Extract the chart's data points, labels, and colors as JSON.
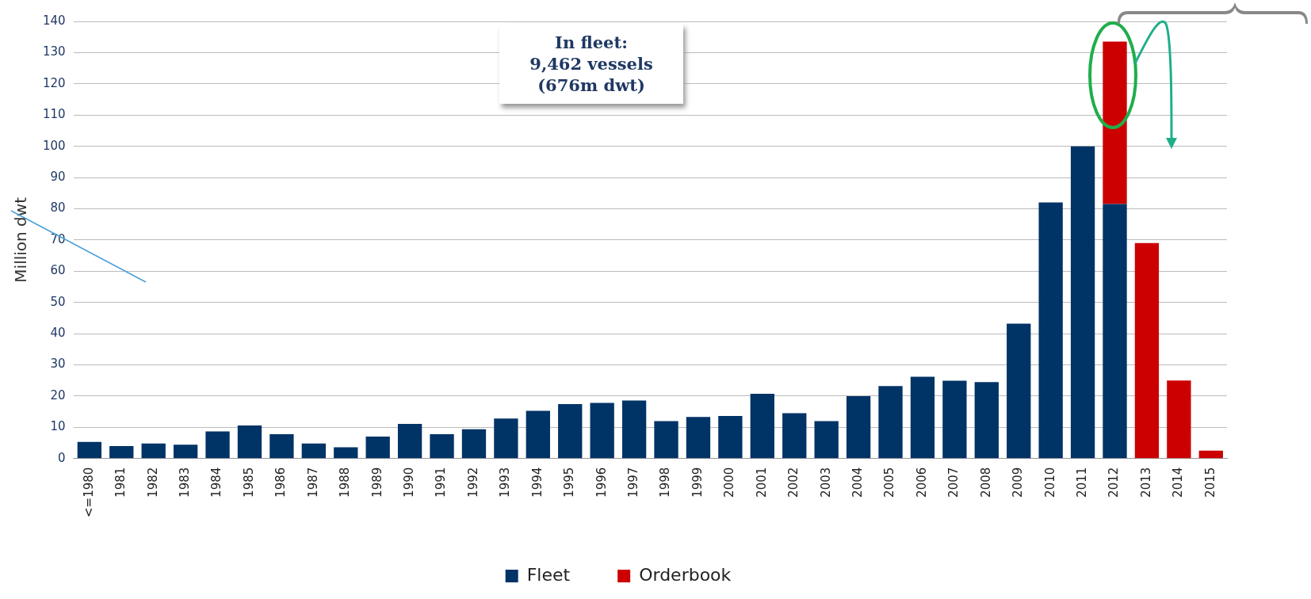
{
  "chart_data": {
    "type": "bar",
    "ylabel": "Million dwt",
    "categories": [
      "<=1980",
      "1981",
      "1982",
      "1983",
      "1984",
      "1985",
      "1986",
      "1987",
      "1988",
      "1989",
      "1990",
      "1991",
      "1992",
      "1993",
      "1994",
      "1995",
      "1996",
      "1997",
      "1998",
      "1999",
      "2000",
      "2001",
      "2002",
      "2003",
      "2004",
      "2005",
      "2006",
      "2007",
      "2008",
      "2009",
      "2010",
      "2011",
      "2012",
      "2013",
      "2014",
      "2015"
    ],
    "series": [
      {
        "name": "Fleet",
        "color": "#003366",
        "values": [
          5.3,
          4,
          4.8,
          4.4,
          8.7,
          10.6,
          7.8,
          4.8,
          3.6,
          7,
          11.1,
          7.8,
          9.4,
          12.8,
          15.3,
          17.4,
          17.8,
          18.6,
          12,
          13.3,
          13.6,
          20.7,
          14.5,
          12,
          20,
          23.2,
          26.2,
          24.9,
          24.5,
          43.2,
          82,
          100,
          81.5,
          null,
          null,
          null
        ]
      },
      {
        "name": "Orderbook",
        "color": "#cc0000",
        "values": [
          null,
          null,
          null,
          null,
          null,
          null,
          null,
          null,
          null,
          null,
          null,
          null,
          null,
          null,
          null,
          null,
          null,
          null,
          null,
          null,
          null,
          null,
          null,
          null,
          null,
          null,
          null,
          null,
          null,
          null,
          null,
          null,
          52,
          69,
          25,
          2.5
        ]
      }
    ],
    "stacked": true,
    "ylim": [
      0,
      140
    ],
    "yticks": [
      0,
      10,
      20,
      30,
      40,
      50,
      60,
      70,
      80,
      90,
      100,
      110,
      120,
      130,
      140
    ],
    "grid": "y",
    "legend": "bottom",
    "annotations": [
      "In fleet:\n9,462 vessels\n(676m dwt)"
    ]
  }
}
